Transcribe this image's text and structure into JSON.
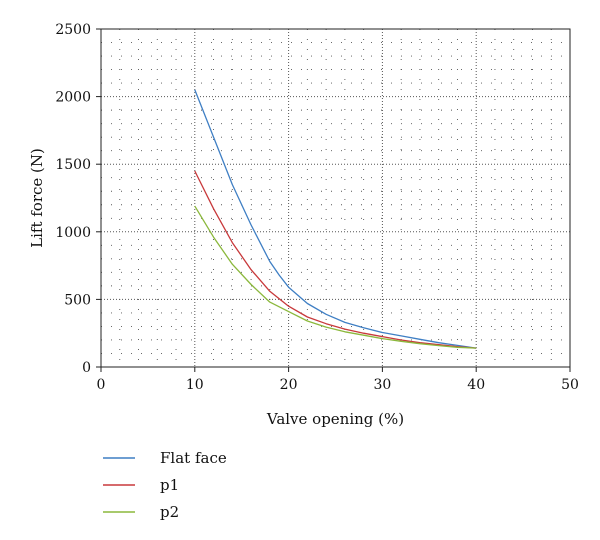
{
  "chart_data": {
    "type": "line",
    "title": "",
    "xlabel": "Valve opening (%)",
    "ylabel": "Lift force (N)",
    "xlim": [
      0,
      50
    ],
    "ylim": [
      0,
      2500
    ],
    "xticks": [
      0,
      10,
      20,
      30,
      40,
      50
    ],
    "yticks": [
      0,
      500,
      1000,
      1500,
      2000,
      2500
    ],
    "grid": true,
    "legend_position": "bottom-left",
    "series": [
      {
        "name": "Flat face",
        "color": "#3f7fc4",
        "x": [
          10,
          12,
          14,
          16,
          18,
          19,
          20,
          22,
          24,
          26,
          28,
          30,
          32,
          34,
          36,
          38,
          40
        ],
        "y": [
          2050,
          1700,
          1350,
          1050,
          780,
          680,
          590,
          470,
          390,
          330,
          290,
          255,
          230,
          205,
          180,
          160,
          140
        ]
      },
      {
        "name": "p1",
        "color": "#c8393b",
        "x": [
          10,
          12,
          14,
          16,
          18,
          20,
          22,
          24,
          26,
          28,
          30,
          32,
          34,
          36,
          38,
          40
        ],
        "y": [
          1450,
          1170,
          920,
          720,
          560,
          450,
          370,
          320,
          280,
          250,
          225,
          200,
          180,
          165,
          150,
          140
        ]
      },
      {
        "name": "p2",
        "color": "#8bb83c",
        "x": [
          10,
          12,
          14,
          16,
          18,
          20,
          22,
          24,
          26,
          28,
          30,
          32,
          34,
          36,
          38,
          40
        ],
        "y": [
          1190,
          960,
          760,
          610,
          480,
          410,
          340,
          295,
          260,
          235,
          210,
          190,
          172,
          158,
          146,
          140
        ]
      }
    ]
  }
}
